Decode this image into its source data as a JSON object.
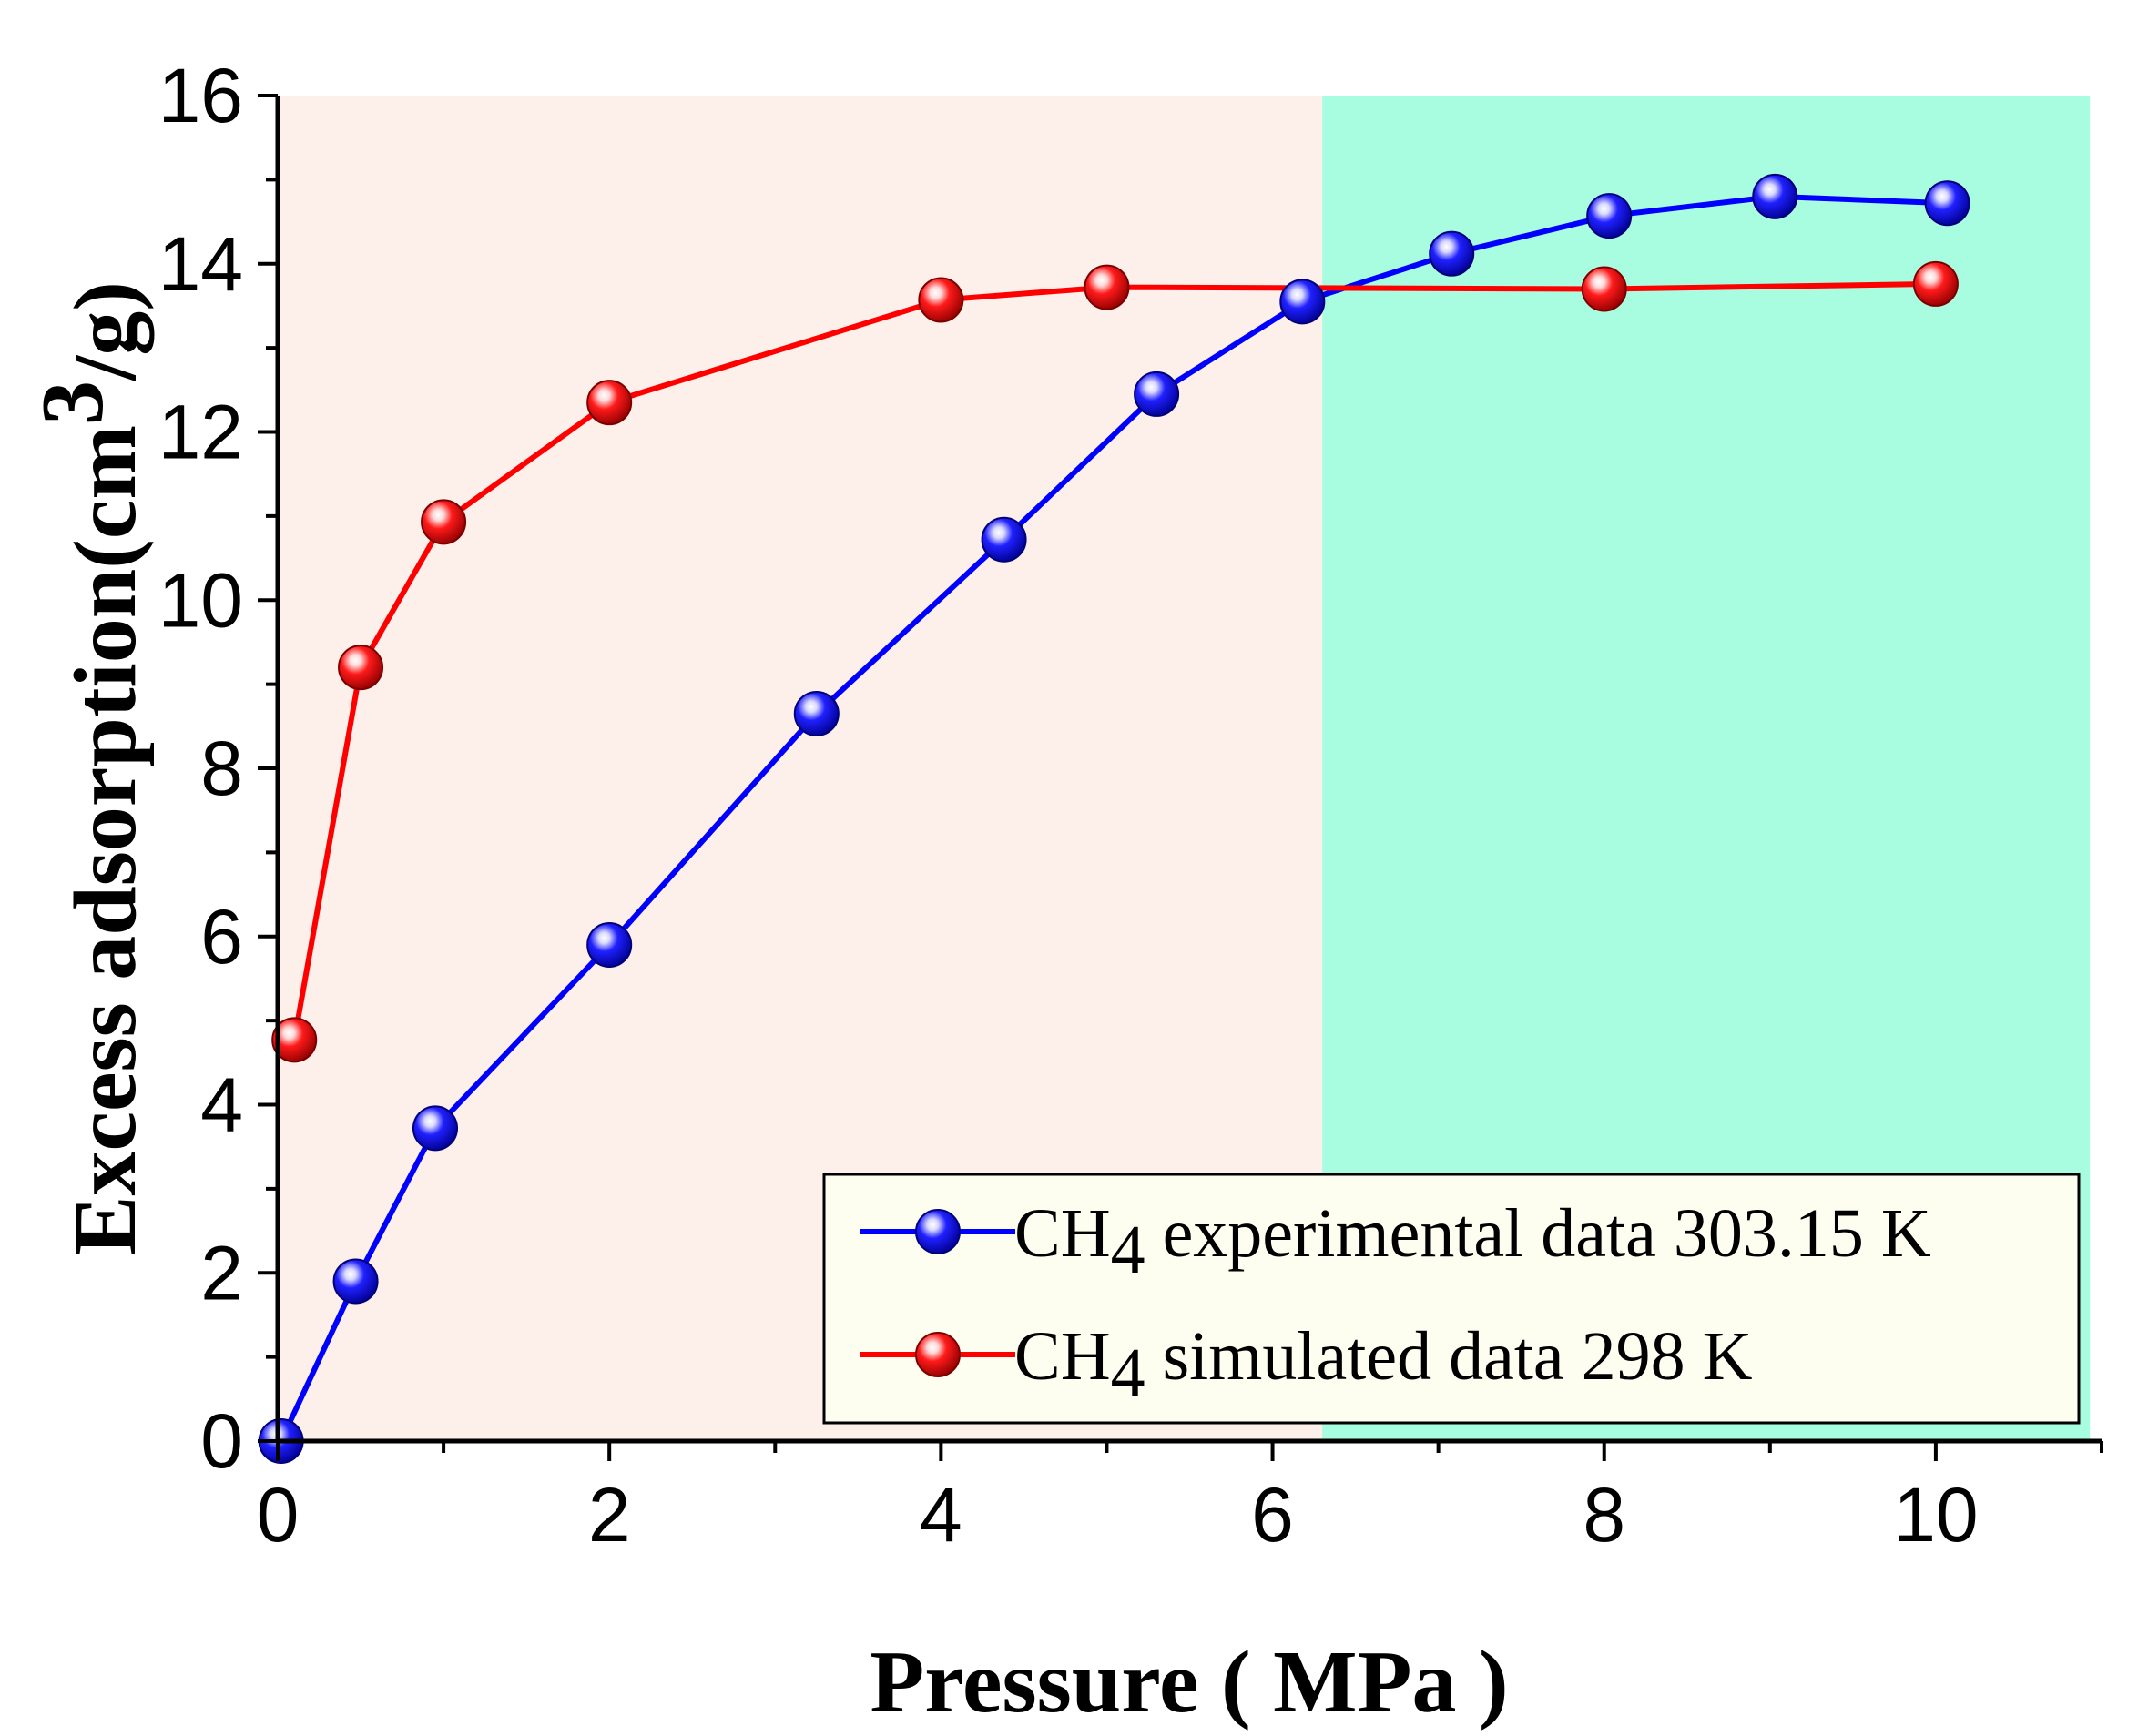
{
  "chart_data": {
    "type": "line",
    "xlabel": "Pressure ( MPa )",
    "ylabel": "Excess adsorption(cm",
    "ylabel_sup": "3",
    "ylabel_tail": "/g)",
    "xlim": [
      0,
      11
    ],
    "ylim": [
      0,
      16
    ],
    "xticks": [
      0,
      2,
      4,
      6,
      8,
      10
    ],
    "yticks": [
      0,
      2,
      4,
      6,
      8,
      10,
      12,
      14,
      16
    ],
    "regions": [
      {
        "x": [
          0,
          6.3
        ],
        "color": "#fdf0ea"
      },
      {
        "x": [
          6.3,
          10.93
        ],
        "color": "#a8fde0"
      }
    ],
    "legend_position": "bottom-right",
    "series": [
      {
        "name": "CH4 experimental data 303.15 K",
        "legend_main": "CH",
        "legend_sub": "4",
        "legend_rest": " experimental data 303.15 K",
        "color": "#0000ff",
        "x": [
          0.02,
          0.47,
          0.95,
          2.0,
          3.25,
          4.38,
          5.3,
          6.18,
          7.08,
          8.03,
          9.03,
          10.07
        ],
        "y": [
          0.0,
          1.9,
          3.72,
          5.9,
          8.65,
          10.72,
          12.45,
          13.55,
          14.12,
          14.57,
          14.8,
          14.72
        ]
      },
      {
        "name": "CH4 simulated data 298 K",
        "legend_main": "CH",
        "legend_sub": "4",
        "legend_rest": " simulated data 298 K",
        "color": "#ff0000",
        "x": [
          0.1,
          0.5,
          1.0,
          2.0,
          4.0,
          5.0,
          8.0,
          10.0
        ],
        "y": [
          4.77,
          9.2,
          10.93,
          12.35,
          13.57,
          13.72,
          13.7,
          13.76
        ]
      }
    ]
  }
}
